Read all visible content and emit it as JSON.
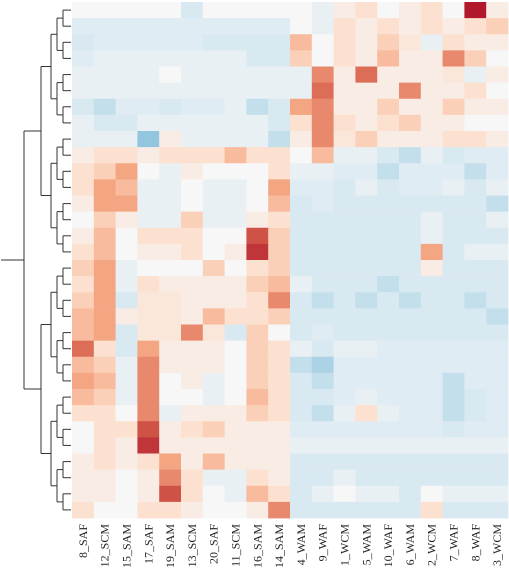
{
  "chart_data": {
    "type": "heatmap",
    "title": "",
    "xlabel": "",
    "ylabel": "",
    "columns": [
      "8_SAF",
      "12_SCM",
      "15_SAM",
      "17_SAF",
      "19_SAM",
      "13_SCM",
      "20_SAF",
      "11_SCM",
      "16_SAM",
      "14_SAM",
      "4_WAM",
      "9_WAF",
      "1_WCM",
      "5_WAM",
      "10_WAF",
      "6_WAM",
      "2_WCM",
      "7_WAF",
      "8_WAF",
      "3_WCM"
    ],
    "value_range": [
      -1,
      1
    ],
    "colormap": "RdBu_r (blue = low, white = mid, red = high)",
    "row_dendrogram": true,
    "values": [
      [
        0.0,
        0.0,
        0.0,
        0.0,
        0.0,
        -0.2,
        0.0,
        0.0,
        0.0,
        0.0,
        0.0,
        -0.1,
        0.1,
        0.2,
        0.0,
        0.1,
        0.2,
        0.0,
        1.0,
        0.1
      ],
      [
        -0.15,
        -0.15,
        -0.15,
        -0.15,
        -0.15,
        -0.15,
        -0.15,
        -0.15,
        -0.15,
        -0.15,
        0.0,
        -0.1,
        0.2,
        0.1,
        0.2,
        0.1,
        0.2,
        0.1,
        0.2,
        0.3
      ],
      [
        -0.2,
        -0.15,
        -0.15,
        -0.15,
        -0.15,
        -0.15,
        -0.2,
        -0.2,
        -0.2,
        -0.2,
        0.4,
        0.0,
        0.2,
        0.1,
        0.3,
        0.15,
        -0.1,
        0.2,
        0.1,
        0.1
      ],
      [
        -0.15,
        -0.1,
        -0.1,
        -0.1,
        -0.1,
        -0.1,
        -0.1,
        -0.1,
        -0.2,
        -0.2,
        0.3,
        0.0,
        0.2,
        0.1,
        0.4,
        0.1,
        0.1,
        0.6,
        0.3,
        0.0
      ],
      [
        -0.1,
        -0.1,
        -0.1,
        -0.1,
        0.0,
        -0.1,
        -0.1,
        -0.1,
        -0.1,
        -0.1,
        -0.1,
        0.6,
        0.1,
        0.7,
        0.1,
        0.1,
        0.1,
        0.15,
        -0.1,
        0.1
      ],
      [
        -0.1,
        -0.1,
        -0.1,
        -0.1,
        -0.1,
        -0.1,
        -0.1,
        -0.1,
        -0.1,
        -0.1,
        -0.1,
        0.7,
        0.1,
        0.1,
        0.1,
        0.6,
        0.1,
        0.1,
        0.2,
        0.0
      ],
      [
        -0.2,
        -0.3,
        -0.15,
        -0.15,
        -0.2,
        -0.15,
        -0.15,
        -0.1,
        -0.3,
        -0.2,
        0.5,
        0.6,
        0.1,
        0.1,
        0.3,
        0.1,
        0.1,
        0.3,
        0.1,
        0.1
      ],
      [
        -0.1,
        -0.2,
        -0.2,
        -0.1,
        -0.1,
        -0.1,
        -0.1,
        -0.1,
        -0.1,
        -0.2,
        0.2,
        0.6,
        0.2,
        0.1,
        0.2,
        0.3,
        0.1,
        0.1,
        0.0,
        0.0
      ],
      [
        -0.1,
        -0.1,
        -0.1,
        -0.5,
        0.1,
        -0.1,
        -0.1,
        -0.1,
        -0.1,
        -0.3,
        0.1,
        0.6,
        0.15,
        0.3,
        0.1,
        0.1,
        0.1,
        0.2,
        0.2,
        0.1
      ],
      [
        0.1,
        0.2,
        0.2,
        0.1,
        0.2,
        0.2,
        0.2,
        0.4,
        0.2,
        0.2,
        0.0,
        0.4,
        -0.1,
        -0.1,
        -0.2,
        -0.3,
        -0.1,
        -0.2,
        -0.15,
        -0.15
      ],
      [
        0.2,
        0.3,
        0.5,
        0.0,
        -0.1,
        0.1,
        0.0,
        0.0,
        0.0,
        0.2,
        -0.1,
        -0.1,
        -0.15,
        -0.15,
        -0.3,
        -0.15,
        -0.15,
        -0.15,
        -0.3,
        -0.15
      ],
      [
        0.2,
        0.5,
        0.4,
        -0.1,
        -0.1,
        0.0,
        -0.1,
        -0.1,
        0.0,
        0.5,
        -0.15,
        -0.15,
        -0.2,
        -0.1,
        -0.2,
        -0.15,
        -0.15,
        -0.1,
        -0.2,
        -0.1
      ],
      [
        0.1,
        0.5,
        0.5,
        -0.1,
        -0.1,
        0.0,
        -0.1,
        -0.1,
        0.0,
        0.4,
        -0.2,
        -0.15,
        -0.2,
        -0.2,
        -0.2,
        -0.2,
        -0.2,
        -0.2,
        -0.2,
        -0.3
      ],
      [
        0.0,
        0.3,
        0.1,
        -0.1,
        -0.1,
        0.3,
        -0.1,
        -0.1,
        0.1,
        0.2,
        -0.2,
        -0.2,
        -0.2,
        -0.2,
        -0.2,
        -0.2,
        -0.1,
        -0.2,
        -0.2,
        -0.1
      ],
      [
        0.1,
        0.4,
        0.0,
        0.2,
        0.2,
        0.2,
        0.0,
        0.0,
        0.8,
        0.3,
        -0.2,
        -0.2,
        -0.2,
        -0.2,
        -0.2,
        -0.2,
        -0.1,
        -0.2,
        -0.2,
        -0.2
      ],
      [
        0.2,
        0.4,
        0.0,
        0.1,
        0.1,
        0.2,
        0.0,
        0.1,
        0.9,
        0.3,
        -0.2,
        -0.2,
        -0.2,
        -0.2,
        -0.2,
        -0.2,
        0.5,
        -0.2,
        -0.1,
        -0.1
      ],
      [
        0.3,
        0.5,
        -0.1,
        0.0,
        0.0,
        0.0,
        0.3,
        0.0,
        0.2,
        0.3,
        -0.2,
        -0.2,
        -0.2,
        -0.2,
        -0.2,
        -0.2,
        0.1,
        -0.2,
        -0.2,
        -0.2
      ],
      [
        0.2,
        0.5,
        -0.1,
        0.2,
        0.1,
        0.1,
        0.1,
        0.1,
        0.3,
        0.4,
        -0.1,
        -0.2,
        -0.2,
        -0.2,
        -0.3,
        -0.2,
        -0.2,
        -0.2,
        -0.2,
        -0.2
      ],
      [
        0.3,
        0.5,
        -0.2,
        0.15,
        0.15,
        0.1,
        0.1,
        0.1,
        0.2,
        0.6,
        -0.2,
        -0.3,
        -0.2,
        -0.3,
        -0.2,
        -0.3,
        -0.2,
        -0.2,
        -0.3,
        -0.2
      ],
      [
        0.4,
        0.5,
        0.1,
        0.15,
        0.15,
        0.1,
        0.4,
        0.2,
        0.2,
        0.3,
        -0.2,
        -0.2,
        -0.2,
        -0.2,
        -0.2,
        -0.2,
        -0.2,
        -0.2,
        -0.2,
        -0.3
      ],
      [
        0.4,
        0.5,
        -0.2,
        0.15,
        0.15,
        0.6,
        0.15,
        -0.2,
        0.3,
        0.0,
        -0.2,
        -0.15,
        -0.2,
        -0.2,
        -0.2,
        -0.2,
        -0.2,
        -0.2,
        -0.2,
        -0.2
      ],
      [
        0.7,
        0.2,
        -0.2,
        0.5,
        0.1,
        0.1,
        0.1,
        0.0,
        0.3,
        0.2,
        -0.1,
        -0.2,
        -0.1,
        -0.1,
        -0.15,
        -0.15,
        -0.15,
        -0.15,
        -0.15,
        -0.15
      ],
      [
        0.4,
        0.3,
        -0.1,
        0.6,
        0.1,
        0.1,
        0.1,
        0.0,
        0.3,
        0.2,
        -0.3,
        -0.4,
        -0.15,
        -0.15,
        -0.15,
        -0.15,
        -0.15,
        -0.15,
        -0.15,
        -0.15
      ],
      [
        0.5,
        0.4,
        -0.1,
        0.6,
        0.0,
        0.1,
        -0.1,
        0.0,
        0.3,
        0.2,
        -0.2,
        -0.3,
        -0.15,
        -0.15,
        -0.15,
        -0.15,
        -0.15,
        -0.3,
        -0.15,
        -0.15
      ],
      [
        0.4,
        0.3,
        -0.1,
        0.6,
        0.0,
        0.0,
        -0.1,
        0.0,
        0.4,
        0.2,
        -0.2,
        -0.2,
        -0.15,
        -0.1,
        -0.15,
        -0.15,
        -0.15,
        -0.3,
        -0.2,
        -0.15
      ],
      [
        0.2,
        0.2,
        0.0,
        0.6,
        -0.1,
        0.1,
        0.1,
        0.1,
        0.3,
        0.2,
        -0.2,
        -0.3,
        -0.1,
        0.2,
        -0.1,
        -0.15,
        -0.15,
        -0.3,
        -0.2,
        -0.15
      ],
      [
        0.0,
        0.2,
        0.2,
        0.8,
        0.1,
        0.2,
        0.3,
        0.1,
        0.1,
        0.1,
        -0.15,
        -0.15,
        -0.15,
        -0.15,
        -0.15,
        -0.15,
        -0.15,
        -0.2,
        -0.15,
        -0.15
      ],
      [
        0.0,
        0.2,
        0.1,
        0.9,
        0.1,
        0.1,
        0.1,
        0.1,
        0.1,
        0.1,
        -0.1,
        -0.1,
        -0.1,
        -0.1,
        -0.1,
        -0.1,
        -0.1,
        -0.1,
        -0.1,
        -0.1
      ],
      [
        0.1,
        0.2,
        0.1,
        0.2,
        0.5,
        0.1,
        0.4,
        0.1,
        0.1,
        0.1,
        -0.2,
        -0.2,
        -0.2,
        -0.2,
        -0.2,
        -0.2,
        -0.2,
        -0.2,
        -0.2,
        -0.2
      ],
      [
        0.1,
        0.1,
        0.0,
        0.1,
        0.6,
        0.2,
        -0.1,
        -0.1,
        0.2,
        0.1,
        -0.2,
        -0.2,
        -0.1,
        -0.2,
        -0.2,
        -0.2,
        -0.2,
        -0.2,
        -0.2,
        -0.2
      ],
      [
        0.1,
        0.1,
        0.0,
        0.1,
        0.8,
        0.2,
        0.0,
        -0.1,
        0.4,
        0.2,
        -0.2,
        -0.1,
        0.0,
        -0.1,
        -0.1,
        -0.2,
        0.0,
        -0.1,
        -0.1,
        -0.1
      ],
      [
        0.2,
        0.0,
        0.0,
        0.2,
        0.2,
        0.1,
        0.0,
        0.0,
        0.1,
        0.6,
        -0.2,
        -0.2,
        -0.2,
        -0.2,
        -0.2,
        -0.2,
        0.2,
        -0.2,
        -0.2,
        -0.2
      ]
    ]
  }
}
